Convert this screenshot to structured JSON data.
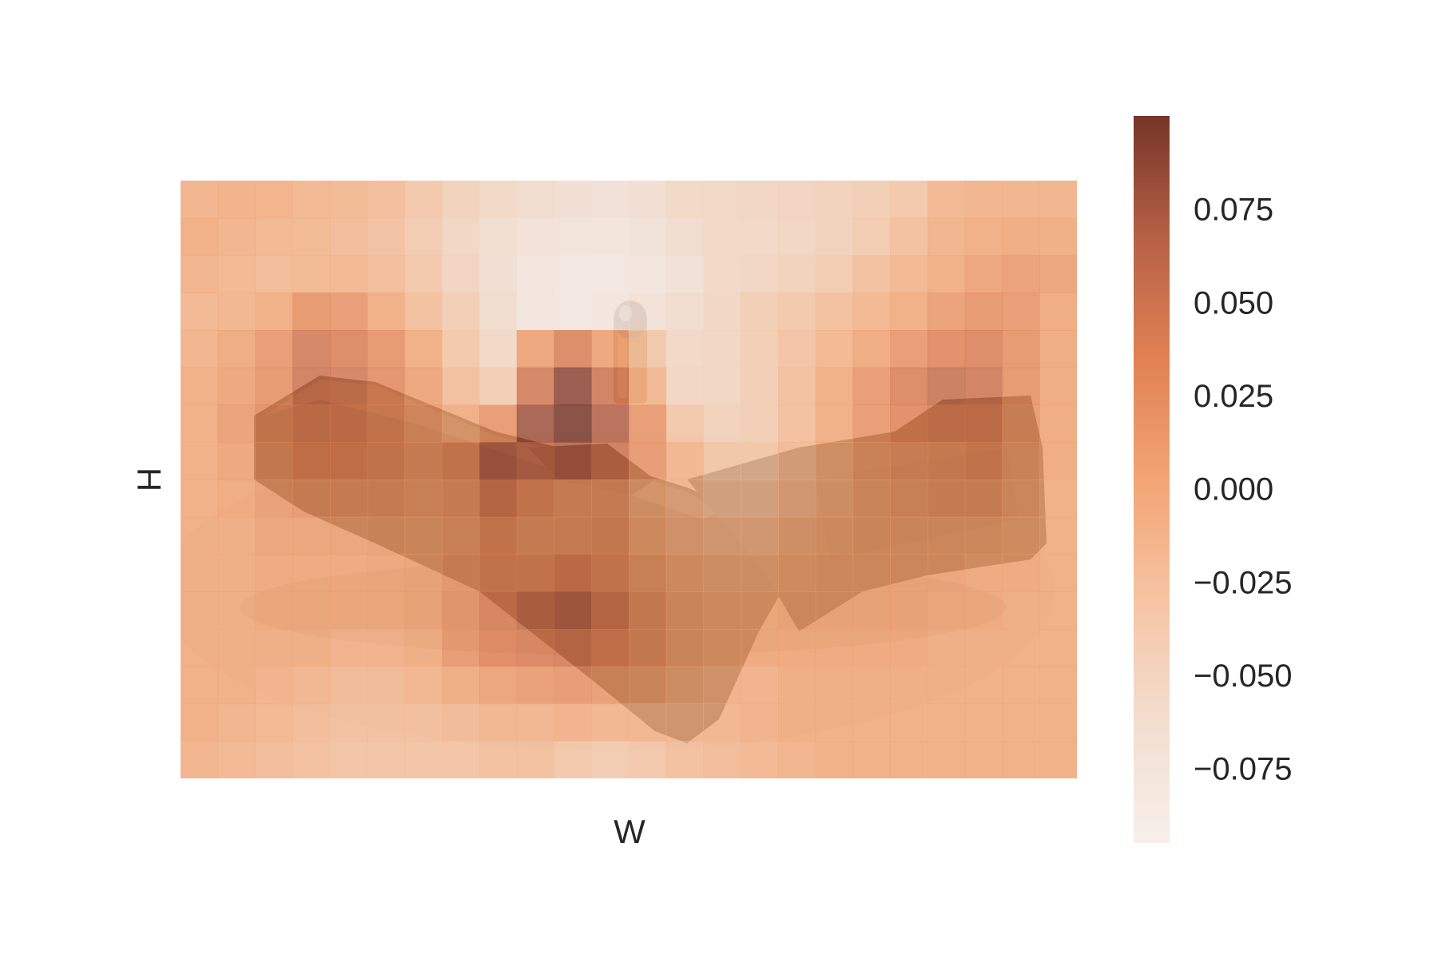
{
  "chart_data": {
    "type": "heatmap",
    "title": "",
    "xlabel": "W",
    "ylabel": "H",
    "background_image": "handgun-with-bullet-photo",
    "grid_rows": 16,
    "grid_cols": 24,
    "values": [
      [
        -0.005,
        -0.002,
        -0.004,
        -0.01,
        -0.012,
        -0.018,
        -0.03,
        -0.045,
        -0.055,
        -0.06,
        -0.065,
        -0.068,
        -0.065,
        -0.055,
        -0.052,
        -0.05,
        -0.048,
        -0.045,
        -0.04,
        -0.03,
        -0.01,
        -0.005,
        -0.006,
        -0.005
      ],
      [
        0.0,
        -0.005,
        -0.01,
        -0.012,
        -0.015,
        -0.022,
        -0.035,
        -0.05,
        -0.062,
        -0.07,
        -0.075,
        -0.078,
        -0.072,
        -0.06,
        -0.055,
        -0.052,
        -0.05,
        -0.045,
        -0.035,
        -0.02,
        -0.005,
        0.0,
        0.003,
        0.002
      ],
      [
        -0.005,
        -0.01,
        -0.015,
        -0.012,
        -0.01,
        -0.018,
        -0.03,
        -0.048,
        -0.065,
        -0.08,
        -0.085,
        -0.085,
        -0.08,
        -0.068,
        -0.055,
        -0.05,
        -0.045,
        -0.035,
        -0.02,
        -0.01,
        0.0,
        0.01,
        0.015,
        0.012
      ],
      [
        -0.01,
        -0.008,
        0.0,
        0.025,
        0.02,
        0.0,
        -0.02,
        -0.04,
        -0.06,
        -0.08,
        -0.085,
        -0.08,
        -0.07,
        -0.06,
        -0.05,
        -0.04,
        -0.03,
        -0.02,
        -0.01,
        0.0,
        0.015,
        0.025,
        0.02,
        0.005
      ],
      [
        -0.005,
        0.005,
        0.02,
        0.045,
        0.04,
        0.025,
        0.0,
        -0.03,
        -0.055,
        0.01,
        0.04,
        0.01,
        -0.03,
        -0.055,
        -0.05,
        -0.04,
        -0.025,
        -0.01,
        0.005,
        0.02,
        0.035,
        0.04,
        0.025,
        0.005
      ],
      [
        0.0,
        0.01,
        0.025,
        0.05,
        0.045,
        0.03,
        0.01,
        -0.02,
        -0.04,
        0.045,
        0.09,
        0.05,
        -0.01,
        -0.05,
        -0.05,
        -0.04,
        -0.02,
        0.0,
        0.02,
        0.04,
        0.055,
        0.05,
        0.025,
        0.005
      ],
      [
        0.0,
        0.015,
        0.03,
        0.04,
        0.04,
        0.03,
        0.015,
        0.0,
        0.02,
        0.08,
        0.11,
        0.07,
        0.02,
        -0.03,
        -0.045,
        -0.04,
        -0.02,
        0.0,
        0.02,
        0.035,
        0.04,
        0.04,
        0.02,
        0.005
      ],
      [
        0.0,
        0.01,
        0.025,
        0.035,
        0.035,
        0.03,
        0.02,
        0.03,
        0.07,
        0.06,
        0.07,
        0.05,
        0.02,
        -0.01,
        -0.03,
        -0.03,
        -0.015,
        0.0,
        0.015,
        0.02,
        0.025,
        0.03,
        0.015,
        0.005
      ],
      [
        0.0,
        0.005,
        0.015,
        0.02,
        0.02,
        0.02,
        0.015,
        0.02,
        0.045,
        0.03,
        0.02,
        0.02,
        0.0,
        -0.01,
        -0.02,
        -0.02,
        -0.01,
        0.0,
        0.01,
        0.015,
        0.02,
        0.02,
        0.01,
        0.0
      ],
      [
        0.0,
        0.0,
        0.01,
        0.01,
        0.01,
        0.012,
        0.01,
        0.015,
        0.03,
        0.02,
        0.02,
        0.025,
        0.005,
        -0.005,
        -0.01,
        -0.01,
        0.0,
        0.005,
        0.01,
        0.01,
        0.01,
        0.01,
        0.005,
        0.0
      ],
      [
        0.0,
        0.0,
        0.005,
        0.005,
        0.005,
        0.008,
        0.01,
        0.02,
        0.03,
        0.03,
        0.04,
        0.03,
        0.015,
        0.005,
        0.0,
        0.0,
        0.005,
        0.01,
        0.01,
        0.01,
        0.01,
        0.005,
        0.005,
        0.0
      ],
      [
        0.0,
        0.0,
        0.005,
        0.005,
        0.005,
        0.005,
        0.01,
        0.025,
        0.04,
        0.055,
        0.065,
        0.045,
        0.025,
        0.01,
        0.005,
        0.005,
        0.01,
        0.01,
        0.01,
        0.01,
        0.005,
        0.005,
        0.0,
        0.0
      ],
      [
        0.0,
        0.0,
        0.0,
        0.0,
        -0.005,
        -0.005,
        0.0,
        0.02,
        0.035,
        0.04,
        0.045,
        0.035,
        0.025,
        0.01,
        0.005,
        0.005,
        0.005,
        0.005,
        0.005,
        0.005,
        0.0,
        0.0,
        0.0,
        0.0
      ],
      [
        0.0,
        0.0,
        -0.005,
        -0.01,
        -0.015,
        -0.015,
        -0.01,
        0.0,
        0.01,
        0.015,
        0.02,
        0.015,
        0.01,
        0.0,
        -0.005,
        -0.005,
        0.0,
        0.0,
        0.0,
        0.0,
        0.0,
        0.0,
        0.0,
        0.0
      ],
      [
        0.0,
        -0.005,
        -0.01,
        -0.015,
        -0.02,
        -0.02,
        -0.02,
        -0.015,
        -0.01,
        -0.01,
        -0.005,
        -0.01,
        -0.01,
        -0.01,
        -0.01,
        -0.005,
        0.0,
        0.0,
        0.0,
        0.0,
        0.0,
        0.0,
        0.0,
        0.0
      ],
      [
        -0.005,
        -0.01,
        -0.015,
        -0.02,
        -0.025,
        -0.025,
        -0.025,
        -0.025,
        -0.02,
        -0.02,
        -0.03,
        -0.035,
        -0.03,
        -0.02,
        -0.015,
        -0.01,
        -0.005,
        0.0,
        0.0,
        0.0,
        0.0,
        0.0,
        0.0,
        0.0
      ]
    ],
    "colorbar": {
      "vmin": -0.095,
      "vmax": 0.1,
      "ticks": [
        0.075,
        0.05,
        0.025,
        0.0,
        -0.025,
        -0.05,
        -0.075
      ],
      "tick_labels": [
        "0.075",
        "0.050",
        "0.025",
        "0.000",
        "−0.025",
        "−0.050",
        "−0.075"
      ]
    },
    "colormap": [
      "#f7eee9",
      "#f2dccd",
      "#f5c19e",
      "#f2a06c",
      "#df7a4a",
      "#b2583c",
      "#6e2a1c"
    ],
    "grid": false,
    "legend": "none"
  }
}
